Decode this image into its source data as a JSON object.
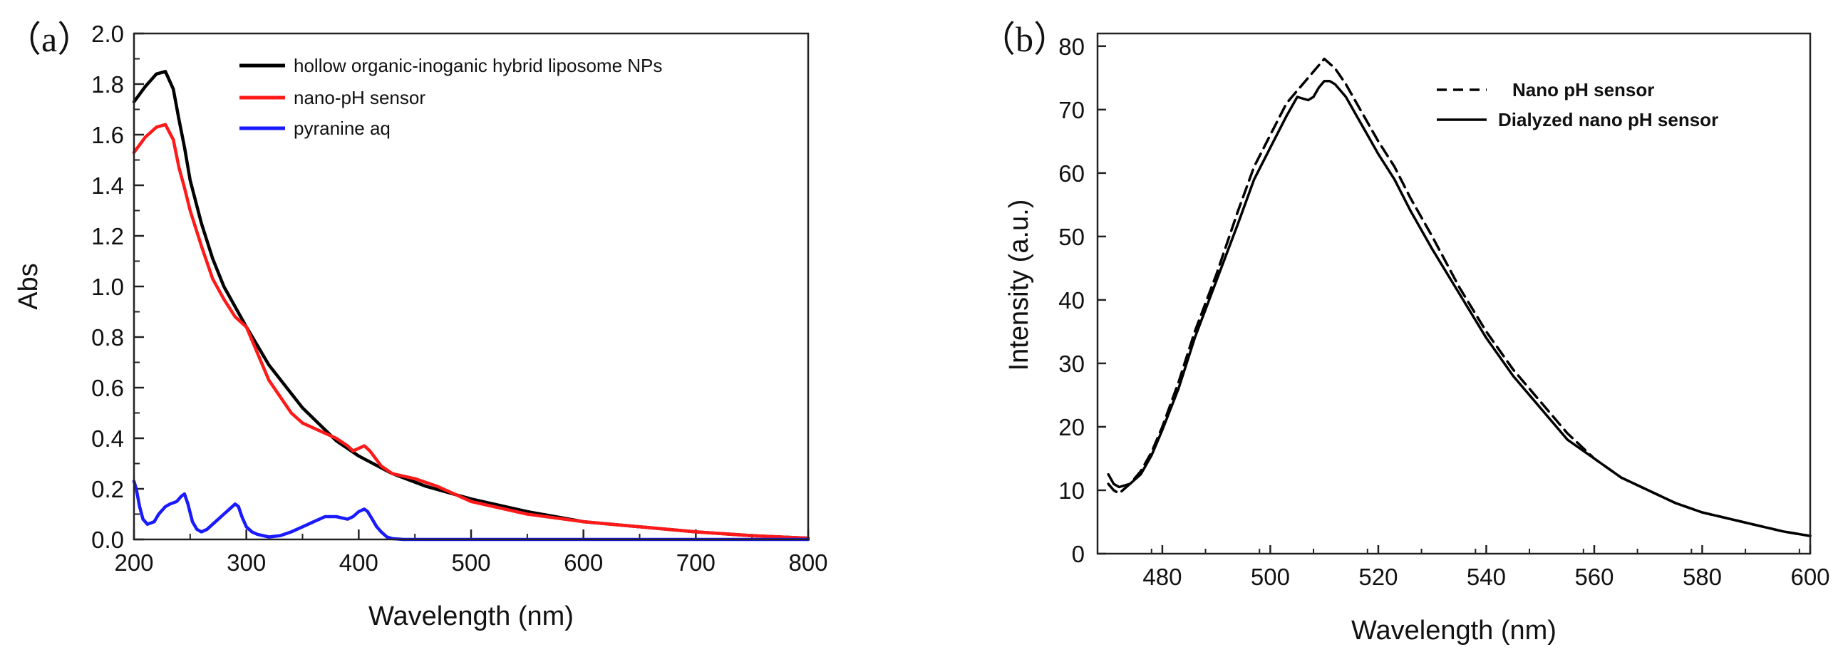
{
  "chart_data": [
    {
      "type": "line",
      "panel_label": "（a）",
      "xlabel": "Wavelength (nm)",
      "ylabel": "Abs",
      "xlim": [
        200,
        800
      ],
      "ylim": [
        0,
        2.0
      ],
      "xticks": [
        200,
        300,
        400,
        500,
        600,
        700,
        800
      ],
      "xtick_labels": [
        "200",
        "300",
        "400",
        "500",
        "600",
        "700",
        "800"
      ],
      "yticks": [
        0.0,
        0.2,
        0.4,
        0.6,
        0.8,
        1.0,
        1.2,
        1.4,
        1.6,
        1.8,
        2.0
      ],
      "ytick_labels": [
        "0.0",
        "0.2",
        "0.4",
        "0.6",
        "0.8",
        "1.0",
        "1.2",
        "1.4",
        "1.6",
        "1.8",
        "2.0"
      ],
      "legend_position": "top-right",
      "series": [
        {
          "name": "hollow organic-inoganic hybrid liposome NPs",
          "color": "#000000",
          "style": "solid",
          "x": [
            200,
            210,
            220,
            228,
            235,
            240,
            245,
            250,
            260,
            270,
            280,
            300,
            320,
            350,
            380,
            400,
            430,
            460,
            500,
            550,
            600,
            650,
            700,
            750,
            800
          ],
          "y": [
            1.73,
            1.79,
            1.84,
            1.85,
            1.78,
            1.66,
            1.55,
            1.42,
            1.25,
            1.11,
            1.0,
            0.84,
            0.69,
            0.52,
            0.39,
            0.33,
            0.26,
            0.21,
            0.16,
            0.11,
            0.07,
            0.05,
            0.03,
            0.015,
            0.005
          ]
        },
        {
          "name": "nano-pH sensor",
          "color": "#ff1a1a",
          "style": "solid",
          "x": [
            200,
            210,
            220,
            228,
            235,
            240,
            245,
            250,
            260,
            270,
            280,
            290,
            300,
            320,
            340,
            350,
            360,
            370,
            380,
            390,
            395,
            400,
            405,
            410,
            420,
            430,
            450,
            470,
            500,
            550,
            600,
            650,
            700,
            750,
            800
          ],
          "y": [
            1.53,
            1.59,
            1.63,
            1.64,
            1.58,
            1.47,
            1.39,
            1.3,
            1.16,
            1.03,
            0.95,
            0.88,
            0.84,
            0.63,
            0.5,
            0.46,
            0.44,
            0.42,
            0.4,
            0.37,
            0.35,
            0.36,
            0.37,
            0.35,
            0.29,
            0.26,
            0.24,
            0.21,
            0.15,
            0.1,
            0.07,
            0.05,
            0.03,
            0.015,
            0.005
          ]
        },
        {
          "name": "pyranine aq",
          "color": "#1a1aff",
          "style": "solid",
          "x": [
            200,
            202,
            205,
            208,
            212,
            218,
            222,
            228,
            232,
            238,
            242,
            245,
            248,
            252,
            256,
            260,
            265,
            270,
            275,
            280,
            285,
            290,
            293,
            296,
            300,
            305,
            310,
            320,
            330,
            340,
            345,
            350,
            355,
            360,
            365,
            370,
            375,
            380,
            385,
            390,
            395,
            400,
            405,
            408,
            412,
            416,
            420,
            425,
            430,
            440,
            500,
            600,
            700,
            800
          ],
          "y": [
            0.23,
            0.2,
            0.13,
            0.08,
            0.06,
            0.07,
            0.1,
            0.13,
            0.14,
            0.15,
            0.17,
            0.18,
            0.14,
            0.07,
            0.04,
            0.03,
            0.04,
            0.06,
            0.08,
            0.1,
            0.12,
            0.14,
            0.13,
            0.09,
            0.05,
            0.03,
            0.02,
            0.01,
            0.015,
            0.03,
            0.04,
            0.05,
            0.06,
            0.07,
            0.08,
            0.09,
            0.09,
            0.09,
            0.085,
            0.08,
            0.09,
            0.11,
            0.12,
            0.11,
            0.08,
            0.05,
            0.03,
            0.01,
            0.003,
            0.0,
            0.0,
            0.0,
            0.0,
            0.0
          ]
        }
      ]
    },
    {
      "type": "line",
      "panel_label": "（b）",
      "xlabel": "Wavelength (nm)",
      "ylabel": "Intensity (a.u.)",
      "xlim": [
        468,
        600
      ],
      "ylim": [
        0,
        82
      ],
      "xticks": [
        480,
        500,
        520,
        540,
        560,
        580,
        600
      ],
      "xtick_labels": [
        "480",
        "500",
        "520",
        "540",
        "560",
        "580",
        "600"
      ],
      "yticks": [
        0,
        10,
        20,
        30,
        40,
        50,
        60,
        70,
        80
      ],
      "ytick_labels": [
        "0",
        "10",
        "20",
        "30",
        "40",
        "50",
        "60",
        "70",
        "80"
      ],
      "legend_position": "top-right",
      "series": [
        {
          "name": "Nano pH sensor",
          "color": "#000000",
          "style": "dashed",
          "x": [
            470,
            471,
            472,
            474,
            476,
            478,
            480,
            483,
            486,
            490,
            494,
            497,
            500,
            503,
            505,
            507,
            509,
            510,
            512,
            514,
            516,
            518,
            520,
            523,
            526,
            530,
            535,
            540,
            545,
            550,
            555,
            560,
            565,
            570,
            575,
            580,
            585,
            590,
            595,
            600
          ],
          "y": [
            11,
            10,
            9.5,
            11,
            13,
            16,
            20,
            27,
            35,
            44,
            54,
            61,
            66,
            71,
            73,
            75,
            77,
            78,
            76.5,
            74,
            71,
            68,
            65,
            61,
            56,
            50,
            42,
            35,
            29,
            24,
            19,
            15,
            12,
            10,
            8,
            6.5,
            5.5,
            4.5,
            3.5,
            2.8
          ]
        },
        {
          "name": "Dialyzed nano pH sensor",
          "color": "#000000",
          "style": "solid",
          "x": [
            470,
            471,
            472,
            474,
            476,
            478,
            480,
            483,
            486,
            490,
            494,
            497,
            500,
            503,
            505,
            507,
            508,
            509,
            510,
            511,
            512,
            514,
            516,
            518,
            520,
            523,
            526,
            530,
            535,
            540,
            545,
            550,
            555,
            560,
            565,
            570,
            575,
            580,
            585,
            590,
            595,
            600
          ],
          "y": [
            12.5,
            11,
            10.5,
            11,
            12.5,
            15.5,
            19.5,
            26,
            34,
            43,
            52,
            59,
            64,
            69,
            72,
            71.5,
            72,
            73.5,
            74.5,
            74.5,
            74,
            72,
            69,
            66,
            63,
            59,
            54,
            48,
            41,
            34,
            28,
            23,
            18,
            15,
            12,
            10,
            8,
            6.5,
            5.5,
            4.5,
            3.5,
            2.8
          ]
        }
      ]
    }
  ]
}
